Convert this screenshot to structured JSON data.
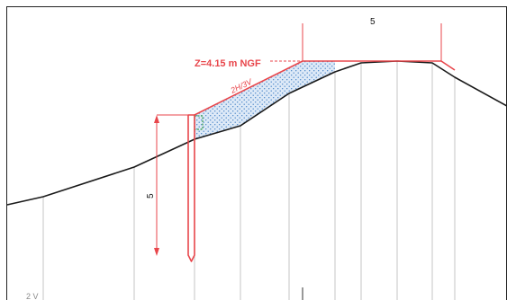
{
  "diagram": {
    "elevation_label": "Z=4.15 m NGF",
    "slope_label": "2H/3V",
    "top_width_label": "5",
    "sheet_pile_depth_label": "5",
    "corner_label": "2 V"
  },
  "colors": {
    "ground_line": "#1a1a1a",
    "design_line": "#e8464b",
    "fill_hatch": "#4a86c8",
    "fill_bg": "#dde9f7",
    "grid_line": "#c4c4c4",
    "frame_line": "#222222",
    "green_block": "#3fa34d"
  }
}
